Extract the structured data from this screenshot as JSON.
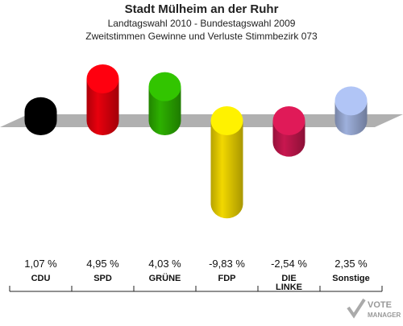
{
  "header": {
    "title": "Stadt Mülheim an der Ruhr",
    "subtitle1": "Landtagswahl 2010 - Bundestagswahl 2009",
    "subtitle2": "Zweitstimmen Gewinne und Verluste Stimmbezirk 073"
  },
  "chart_data": {
    "type": "bar",
    "title": "Stadt Mülheim an der Ruhr",
    "categories": [
      "CDU",
      "SPD",
      "GRÜNE",
      "FDP",
      "DIE LINKE",
      "Sonstige"
    ],
    "values": [
      1.07,
      4.95,
      4.03,
      -9.83,
      -2.54,
      2.35
    ],
    "value_labels": [
      "1,07 %",
      "4,95 %",
      "4,03 %",
      "-9,83 %",
      "-2,54 %",
      "2,35 %"
    ],
    "colors": [
      "#000000",
      "#e8000d",
      "#2db000",
      "#f2d800",
      "#c8174f",
      "#9eb0dc"
    ],
    "grid": false,
    "legend": "none"
  },
  "logo": {
    "text": "VOTE MANAGER",
    "icon": "checkmark-ballot-icon"
  }
}
